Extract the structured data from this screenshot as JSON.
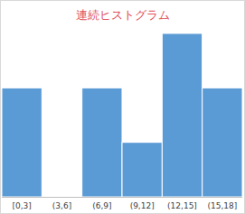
{
  "chart_data": {
    "type": "histogram",
    "title": "連続ヒストグラム",
    "categories": [
      "[0,3]",
      "(3,6]",
      "(6,9]",
      "(9,12]",
      "(12,15]",
      "(15,18]"
    ],
    "bins": [
      0,
      3,
      6,
      9,
      12,
      15,
      18
    ],
    "values": [
      2,
      0,
      2,
      1,
      3,
      2
    ],
    "color": "#5b9bd5",
    "xlim": [
      0,
      18
    ],
    "ylim": [
      0,
      3
    ],
    "tick_labels": "x",
    "grid": false
  }
}
